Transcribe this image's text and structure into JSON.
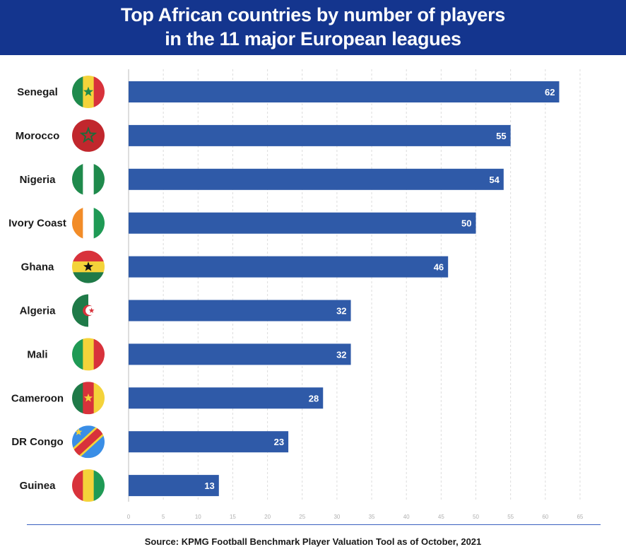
{
  "header": {
    "title_line_1": "Top African countries by number of players",
    "title_line_2": "in the 11 major European leagues"
  },
  "footer": {
    "source": "Source: KPMG Football Benchmark Player Valuation Tool as of October, 2021"
  },
  "colors": {
    "header_bg": "#14358e",
    "bar": "#2f5aa8"
  },
  "chart_data": {
    "type": "bar",
    "orientation": "horizontal",
    "title": "Top African countries by number of players in the 11 major European leagues",
    "categories": [
      "Senegal",
      "Morocco",
      "Nigeria",
      "Ivory Coast",
      "Ghana",
      "Algeria",
      "Mali",
      "Cameroon",
      "DR Congo",
      "Guinea"
    ],
    "values": [
      62,
      55,
      54,
      50,
      46,
      32,
      32,
      28,
      23,
      13
    ],
    "xlim": [
      0,
      65
    ],
    "x_ticks": [
      0,
      5,
      10,
      15,
      20,
      25,
      30,
      35,
      40,
      45,
      50,
      55,
      60,
      65
    ],
    "grid": "vertical-dashed",
    "data_labels": "inside-end",
    "category_icons": [
      "senegal-flag-icon",
      "morocco-flag-icon",
      "nigeria-flag-icon",
      "ivory-coast-flag-icon",
      "ghana-flag-icon",
      "algeria-flag-icon",
      "mali-flag-icon",
      "cameroon-flag-icon",
      "dr-congo-flag-icon",
      "guinea-flag-icon"
    ]
  }
}
